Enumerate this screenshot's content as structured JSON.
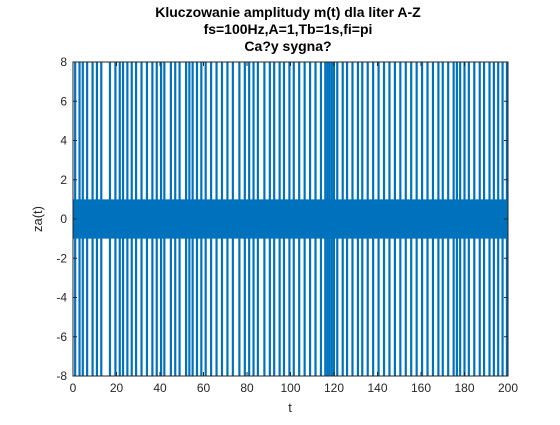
{
  "chart_data": {
    "type": "line",
    "title": [
      "Kluczowanie amplitudy m(t) dla liter A-Z",
      "fs=100Hz,A=1,Tb=1s,fi=pi",
      "Ca?y sygna?"
    ],
    "xlabel": "t",
    "ylabel": "za(t)",
    "xlim": [
      0,
      200
    ],
    "ylim": [
      -8,
      8
    ],
    "xticks": [
      0,
      20,
      40,
      60,
      80,
      100,
      120,
      140,
      160,
      180,
      200
    ],
    "yticks": [
      -8,
      -6,
      -4,
      -2,
      0,
      2,
      4,
      6,
      8
    ],
    "grid": false,
    "legend": "none",
    "series": [
      {
        "color": "#0072BD",
        "band": [
          -1,
          1
        ],
        "spikes_full_range_at_t": [
          1,
          3,
          4.5,
          6.5,
          9,
          11,
          13,
          17,
          19.5,
          21.5,
          23,
          25,
          27,
          29,
          31.5,
          34,
          36.5,
          38.5,
          40.5,
          42,
          45,
          47,
          49,
          52,
          53.5,
          55,
          57,
          59,
          61,
          63.5,
          66,
          68.5,
          71,
          73.5,
          76.5,
          79,
          81,
          83,
          85,
          88,
          90.5,
          92.5,
          95,
          97,
          99.5,
          101.5,
          104,
          106.5,
          109,
          111.5,
          114,
          116,
          117,
          118,
          119,
          120,
          121.5,
          124,
          126,
          128.5,
          131,
          133,
          135.5,
          138,
          140.5,
          143,
          145.5,
          148,
          150.5,
          153,
          155.5,
          158,
          160.5,
          163,
          165.5,
          168,
          170,
          172.5,
          175,
          176.5,
          178,
          180,
          182,
          184.5,
          187,
          189,
          191.5,
          193.5,
          195.5,
          197.5,
          199.5
        ]
      }
    ]
  }
}
